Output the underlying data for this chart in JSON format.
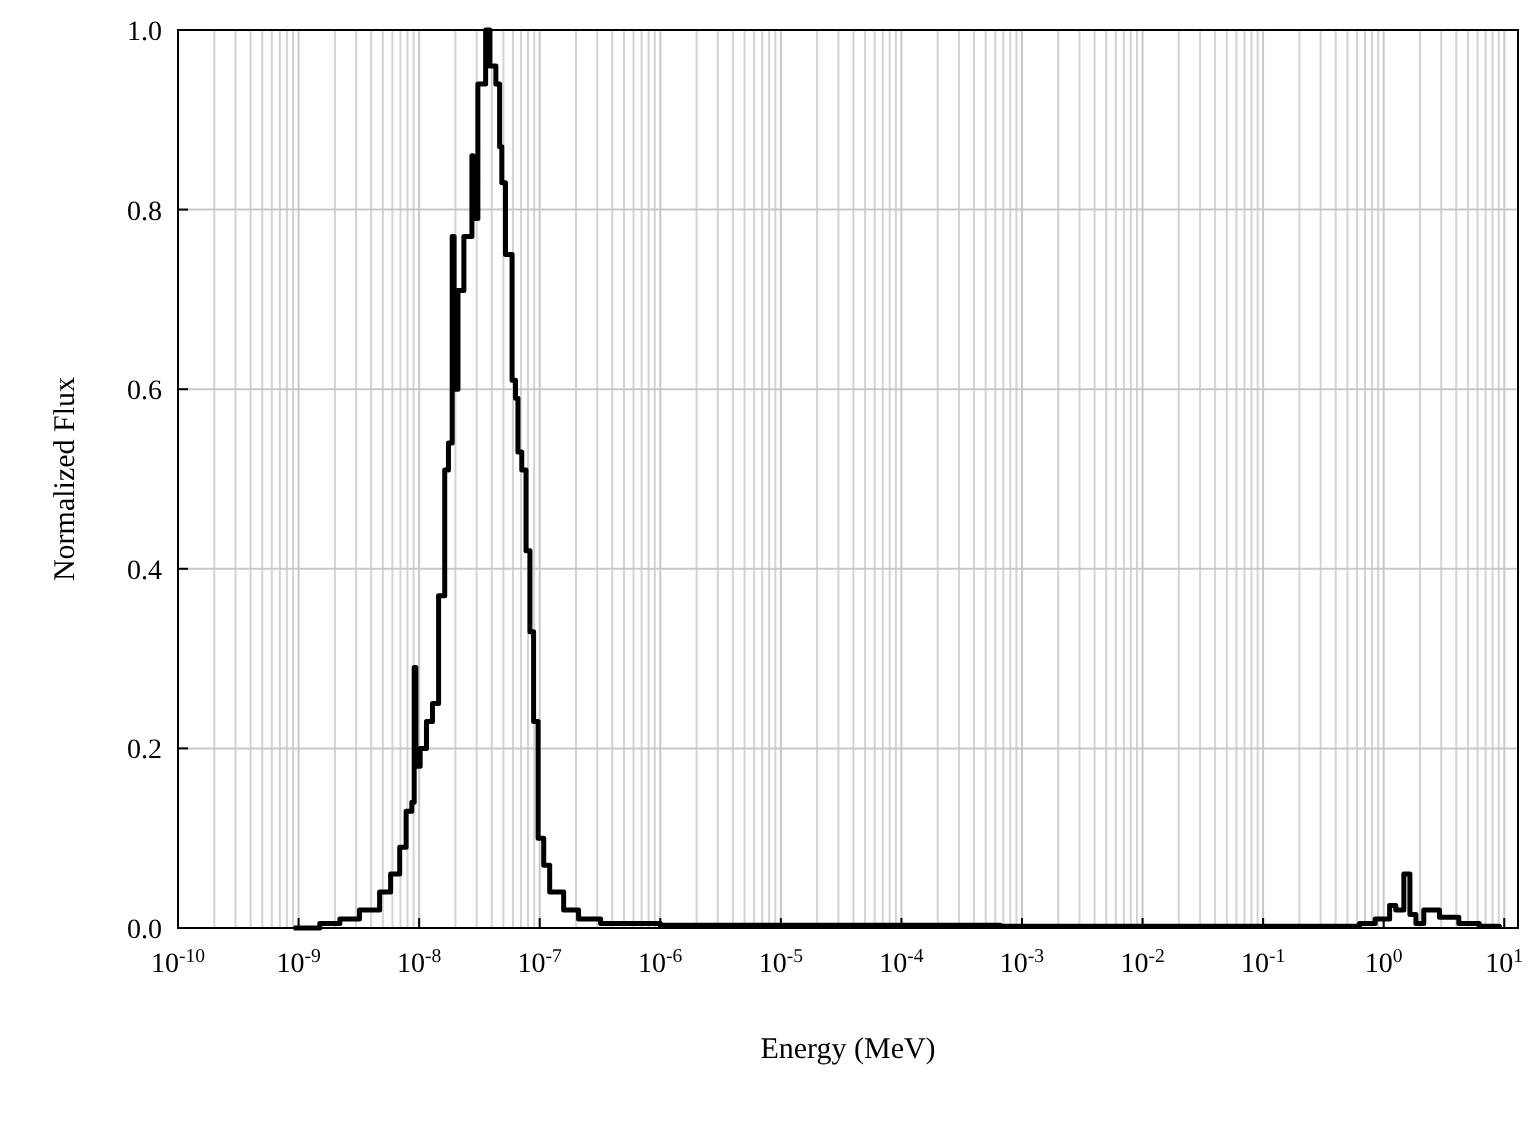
{
  "chart_data": {
    "type": "step",
    "xlabel": "Energy (MeV)",
    "ylabel": "Normalized Flux",
    "log": "x",
    "grid": true,
    "marker": "none",
    "line_style": "solid",
    "xlim": [
      1e-10,
      13
    ],
    "ylim": [
      0,
      1
    ],
    "xticks": [
      {
        "value": 1e-10,
        "label": "10$^{-10}$"
      },
      {
        "value": 1e-09,
        "label": "10$^{-9}$"
      },
      {
        "value": 1e-08,
        "label": "10$^{-8}$"
      },
      {
        "value": 1e-07,
        "label": "10$^{-7}$"
      },
      {
        "value": 1e-06,
        "label": "10$^{-6}$"
      },
      {
        "value": 1e-05,
        "label": "10$^{-5}$"
      },
      {
        "value": 0.0001,
        "label": "10$^{-4}$"
      },
      {
        "value": 0.001,
        "label": "10$^{-3}$"
      },
      {
        "value": 0.01,
        "label": "10$^{-2}$"
      },
      {
        "value": 0.1,
        "label": "10$^{-1}$"
      },
      {
        "value": 1,
        "label": "10$^{0}$"
      },
      {
        "value": 10,
        "label": "10$^{1}$"
      }
    ],
    "yticks": [
      {
        "value": 0,
        "label": "0.0"
      },
      {
        "value": 0.2,
        "label": "0.2"
      },
      {
        "value": 0.4,
        "label": "0.4"
      },
      {
        "value": 0.6,
        "label": "0.6"
      },
      {
        "value": 0.8,
        "label": "0.8"
      },
      {
        "value": 1,
        "label": "1.0"
      }
    ],
    "series": [
      {
        "color": "#000000",
        "x": [
          9.1e-10,
          1.5e-09,
          2.2e-09,
          3.2e-09,
          4.7e-09,
          5.8e-09,
          6.9e-09,
          7.8e-09,
          8.7e-09,
          9.1e-09,
          9.4e-09,
          1.02e-08,
          1.15e-08,
          1.29e-08,
          1.45e-08,
          1.63e-08,
          1.75e-08,
          1.88e-08,
          1.95e-08,
          2.1e-08,
          2.35e-08,
          2.74e-08,
          2.8e-08,
          3.07e-08,
          3.56e-08,
          3.86e-08,
          4.33e-08,
          4.65e-08,
          4.85e-08,
          5.2e-08,
          5.9e-08,
          6.3e-08,
          6.6e-08,
          7.1e-08,
          7.7e-08,
          8.3e-08,
          8.9e-08,
          9.7e-08,
          1.08e-07,
          1.21e-07,
          1.58e-07,
          2.1e-07,
          3.2e-07,
          1e-06,
          1.4e-05,
          0.00066,
          0.03,
          0.63,
          0.85,
          1.12,
          1.26,
          1.47,
          1.65,
          1.85,
          2.15,
          2.5,
          2.9,
          4.2,
          6.2,
          9.1
        ],
        "values": [
          0,
          0.005,
          0.01,
          0.02,
          0.04,
          0.06,
          0.09,
          0.13,
          0.14,
          0.29,
          0.18,
          0.2,
          0.23,
          0.25,
          0.37,
          0.51,
          0.54,
          0.77,
          0.6,
          0.71,
          0.77,
          0.86,
          0.79,
          0.94,
          1.0,
          0.96,
          0.94,
          0.87,
          0.83,
          0.75,
          0.61,
          0.59,
          0.53,
          0.51,
          0.42,
          0.33,
          0.23,
          0.1,
          0.07,
          0.04,
          0.02,
          0.01,
          0.005,
          0.003,
          0.003,
          0.002,
          0.002,
          0.005,
          0.01,
          0.025,
          0.02,
          0.06,
          0.015,
          0.005,
          0.02,
          0.02,
          0.012,
          0.005,
          0.002,
          0
        ]
      }
    ]
  }
}
